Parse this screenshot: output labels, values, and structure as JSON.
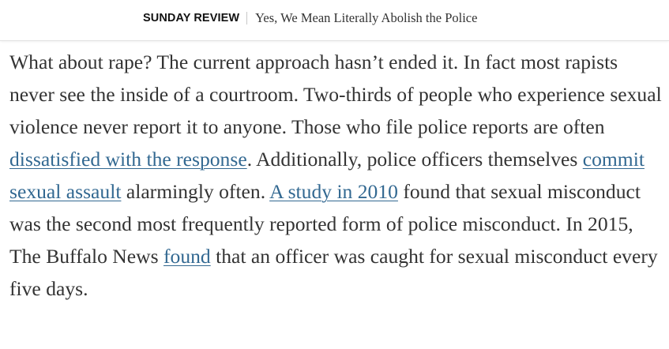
{
  "header": {
    "section": "SUNDAY REVIEW",
    "headline": "Yes, We Mean Literally Abolish the Police"
  },
  "colors": {
    "link": "#326891",
    "text": "#333333",
    "section_text": "#121212",
    "divider": "#c7c7c7"
  },
  "article": {
    "segments": [
      {
        "type": "text",
        "text": "What about rape? The current approach hasn’t ended it. In fact most rapists never see the inside of a courtroom. Two-thirds of people who experience sexual violence never report it to anyone. Those who file police reports are often "
      },
      {
        "type": "link",
        "text": "dissatisfied with the response"
      },
      {
        "type": "text",
        "text": ". Additionally, police officers themselves "
      },
      {
        "type": "link",
        "text": "commit sexual assault"
      },
      {
        "type": "text",
        "text": " alarmingly often. "
      },
      {
        "type": "link",
        "text": "A study in 2010"
      },
      {
        "type": "text",
        "text": " found that sexual misconduct was the second most frequently reported form of police misconduct. In 2015, The Buffalo News "
      },
      {
        "type": "link",
        "text": "found"
      },
      {
        "type": "text",
        "text": " that an officer was caught for sexual misconduct every five days."
      }
    ]
  }
}
